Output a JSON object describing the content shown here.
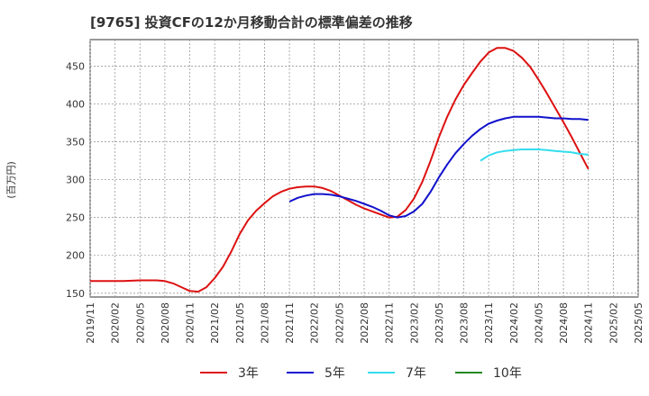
{
  "chart_data": {
    "type": "line",
    "title": "[9765]  投資CFの12か月移動合計の標準偏差の推移",
    "ylabel": "(百万円)",
    "xlabel": "",
    "ylim": [
      145,
      485
    ],
    "yticks": [
      150,
      200,
      250,
      300,
      350,
      400,
      450
    ],
    "grid": true,
    "legend_position": "bottom",
    "x_tick_labels": [
      "2019/11",
      "2020/02",
      "2020/05",
      "2020/08",
      "2020/11",
      "2021/02",
      "2021/05",
      "2021/08",
      "2021/11",
      "2022/02",
      "2022/05",
      "2022/08",
      "2022/11",
      "2023/02",
      "2023/05",
      "2023/08",
      "2023/11",
      "2024/02",
      "2024/05",
      "2024/08",
      "2024/11",
      "2025/02",
      "2025/05"
    ],
    "colors": {
      "3年": "#dd1111",
      "5年": "#1111cc",
      "7年": "#33ddee",
      "10年": "#228822"
    },
    "series": [
      {
        "name": "3年",
        "color": "#dd1111",
        "points": [
          [
            "2019/11",
            166
          ],
          [
            "2019/12",
            166
          ],
          [
            "2020/01",
            166
          ],
          [
            "2020/02",
            166
          ],
          [
            "2020/03",
            166
          ],
          [
            "2020/04",
            166.5
          ],
          [
            "2020/05",
            167
          ],
          [
            "2020/06",
            167
          ],
          [
            "2020/07",
            167
          ],
          [
            "2020/08",
            166
          ],
          [
            "2020/09",
            163
          ],
          [
            "2020/10",
            158
          ],
          [
            "2020/11",
            153
          ],
          [
            "2020/12",
            152
          ],
          [
            "2021/01",
            158
          ],
          [
            "2021/02",
            170
          ],
          [
            "2021/03",
            185
          ],
          [
            "2021/04",
            205
          ],
          [
            "2021/05",
            228
          ],
          [
            "2021/06",
            246
          ],
          [
            "2021/07",
            259
          ],
          [
            "2021/08",
            269
          ],
          [
            "2021/09",
            278
          ],
          [
            "2021/10",
            284
          ],
          [
            "2021/11",
            288
          ],
          [
            "2021/12",
            290
          ],
          [
            "2022/01",
            291
          ],
          [
            "2022/02",
            291
          ],
          [
            "2022/03",
            289
          ],
          [
            "2022/04",
            285
          ],
          [
            "2022/05",
            279
          ],
          [
            "2022/06",
            273
          ],
          [
            "2022/07",
            267
          ],
          [
            "2022/08",
            262
          ],
          [
            "2022/09",
            258
          ],
          [
            "2022/10",
            254
          ],
          [
            "2022/11",
            250
          ],
          [
            "2022/12",
            251
          ],
          [
            "2023/01",
            260
          ],
          [
            "2023/02",
            275
          ],
          [
            "2023/03",
            297
          ],
          [
            "2023/04",
            325
          ],
          [
            "2023/05",
            356
          ],
          [
            "2023/06",
            383
          ],
          [
            "2023/07",
            406
          ],
          [
            "2023/08",
            425
          ],
          [
            "2023/09",
            441
          ],
          [
            "2023/10",
            456
          ],
          [
            "2023/11",
            468
          ],
          [
            "2023/12",
            474
          ],
          [
            "2024/01",
            474
          ],
          [
            "2024/02",
            470
          ],
          [
            "2024/03",
            461
          ],
          [
            "2024/04",
            449
          ],
          [
            "2024/05",
            432
          ],
          [
            "2024/06",
            414
          ],
          [
            "2024/07",
            395
          ],
          [
            "2024/08",
            376
          ],
          [
            "2024/09",
            356
          ],
          [
            "2024/10",
            335
          ],
          [
            "2024/11",
            314
          ]
        ]
      },
      {
        "name": "5年",
        "color": "#1111cc",
        "points": [
          [
            "2021/11",
            271
          ],
          [
            "2021/12",
            276
          ],
          [
            "2022/01",
            279
          ],
          [
            "2022/02",
            281
          ],
          [
            "2022/03",
            281
          ],
          [
            "2022/04",
            280
          ],
          [
            "2022/05",
            278
          ],
          [
            "2022/06",
            275
          ],
          [
            "2022/07",
            272
          ],
          [
            "2022/08",
            268
          ],
          [
            "2022/09",
            264
          ],
          [
            "2022/10",
            259
          ],
          [
            "2022/11",
            253
          ],
          [
            "2022/12",
            250
          ],
          [
            "2023/01",
            252
          ],
          [
            "2023/02",
            258
          ],
          [
            "2023/03",
            268
          ],
          [
            "2023/04",
            284
          ],
          [
            "2023/05",
            303
          ],
          [
            "2023/06",
            320
          ],
          [
            "2023/07",
            335
          ],
          [
            "2023/08",
            347
          ],
          [
            "2023/09",
            358
          ],
          [
            "2023/10",
            367
          ],
          [
            "2023/11",
            374
          ],
          [
            "2023/12",
            378
          ],
          [
            "2024/01",
            381
          ],
          [
            "2024/02",
            383
          ],
          [
            "2024/03",
            383
          ],
          [
            "2024/04",
            383
          ],
          [
            "2024/05",
            383
          ],
          [
            "2024/06",
            382
          ],
          [
            "2024/07",
            381
          ],
          [
            "2024/08",
            381
          ],
          [
            "2024/09",
            380
          ],
          [
            "2024/10",
            380
          ],
          [
            "2024/11",
            379
          ]
        ]
      },
      {
        "name": "7年",
        "color": "#33ddee",
        "points": [
          [
            "2023/10",
            325
          ],
          [
            "2023/11",
            332
          ],
          [
            "2023/12",
            336
          ],
          [
            "2024/01",
            338
          ],
          [
            "2024/02",
            339
          ],
          [
            "2024/03",
            340
          ],
          [
            "2024/04",
            340
          ],
          [
            "2024/05",
            340
          ],
          [
            "2024/06",
            339
          ],
          [
            "2024/07",
            338
          ],
          [
            "2024/08",
            337
          ],
          [
            "2024/09",
            336
          ],
          [
            "2024/10",
            334
          ],
          [
            "2024/11",
            333
          ]
        ]
      },
      {
        "name": "10年",
        "color": "#228822",
        "points": []
      }
    ]
  }
}
